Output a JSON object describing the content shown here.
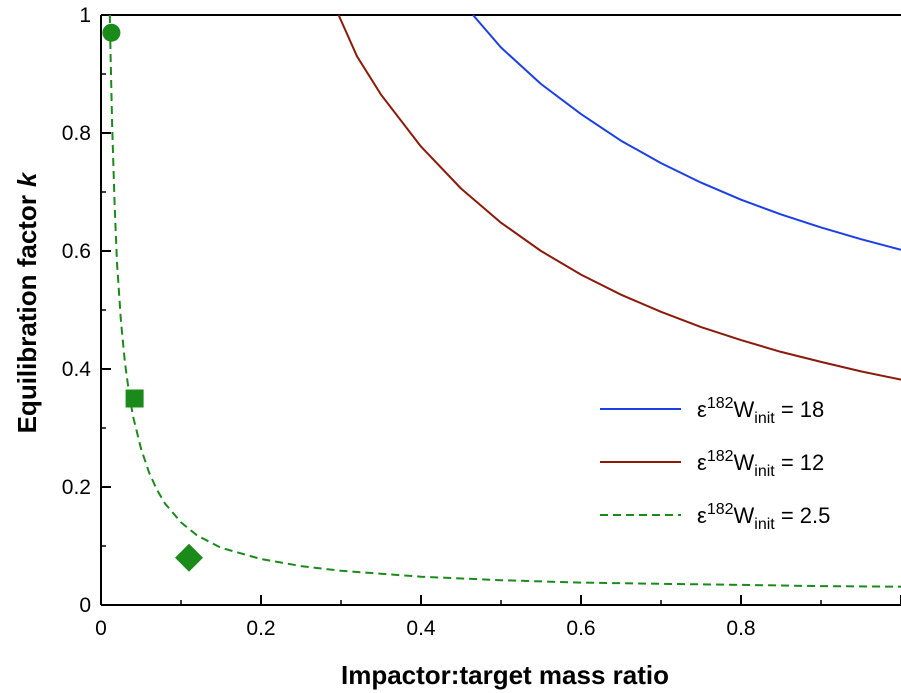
{
  "chart_data": {
    "type": "line",
    "xlabel": "Impactor:target mass ratio",
    "ylabel": "Equilibration factor",
    "ylabel_italic": "k",
    "xlim": [
      0,
      1
    ],
    "ylim": [
      0,
      1
    ],
    "x_ticks": [
      0,
      0.2,
      0.4,
      0.6,
      0.8,
      1
    ],
    "x_tick_labels": [
      "0",
      "0.2",
      "0.4",
      "0.6",
      "0.8",
      ""
    ],
    "y_ticks": [
      0,
      0.2,
      0.4,
      0.6,
      0.8,
      1
    ],
    "y_tick_labels": [
      "0",
      "0.2",
      "0.4",
      "0.6",
      "0.8",
      "1"
    ],
    "grid": false,
    "legend_position": "right",
    "series": [
      {
        "key": "w18",
        "legend": {
          "prefix": "ε",
          "sup": "182",
          "base": "W",
          "sub": "init",
          "suffix": " = 18"
        },
        "color": "#1a3fe6",
        "dashed": false,
        "x": [
          0.465,
          0.5,
          0.55,
          0.6,
          0.65,
          0.7,
          0.75,
          0.8,
          0.85,
          0.9,
          0.95,
          1.0
        ],
        "y": [
          1.0,
          0.945,
          0.883,
          0.832,
          0.787,
          0.749,
          0.716,
          0.687,
          0.662,
          0.64,
          0.62,
          0.602
        ]
      },
      {
        "key": "w12",
        "legend": {
          "prefix": "ε",
          "sup": "182",
          "base": "W",
          "sub": "init",
          "suffix": " = 12"
        },
        "color": "#8b1a0a",
        "dashed": false,
        "x": [
          0.297,
          0.32,
          0.35,
          0.4,
          0.45,
          0.5,
          0.55,
          0.6,
          0.65,
          0.7,
          0.75,
          0.8,
          0.85,
          0.9,
          0.95,
          1.0
        ],
        "y": [
          1.0,
          0.93,
          0.865,
          0.777,
          0.706,
          0.648,
          0.6,
          0.56,
          0.526,
          0.497,
          0.471,
          0.449,
          0.429,
          0.412,
          0.396,
          0.382
        ]
      },
      {
        "key": "w25",
        "legend": {
          "prefix": "ε",
          "sup": "182",
          "base": "W",
          "sub": "init",
          "suffix": " = 2.5"
        },
        "color": "#1a8a1a",
        "dashed": true,
        "x": [
          0.011,
          0.012,
          0.014,
          0.017,
          0.02,
          0.025,
          0.03,
          0.035,
          0.04,
          0.05,
          0.06,
          0.07,
          0.08,
          0.1,
          0.12,
          0.15,
          0.2,
          0.25,
          0.3,
          0.4,
          0.5,
          0.6,
          0.7,
          0.8,
          0.9,
          1.0
        ],
        "y": [
          1.0,
          0.93,
          0.81,
          0.68,
          0.58,
          0.48,
          0.41,
          0.36,
          0.32,
          0.265,
          0.225,
          0.195,
          0.172,
          0.14,
          0.118,
          0.097,
          0.078,
          0.066,
          0.058,
          0.048,
          0.042,
          0.038,
          0.036,
          0.034,
          0.032,
          0.031
        ]
      }
    ],
    "markers": [
      {
        "shape": "circle",
        "x": 0.013,
        "y": 0.97,
        "color": "#1a8a1a"
      },
      {
        "shape": "square",
        "x": 0.042,
        "y": 0.35,
        "color": "#1a8a1a"
      },
      {
        "shape": "diamond",
        "x": 0.11,
        "y": 0.08,
        "color": "#1a8a1a"
      }
    ]
  }
}
